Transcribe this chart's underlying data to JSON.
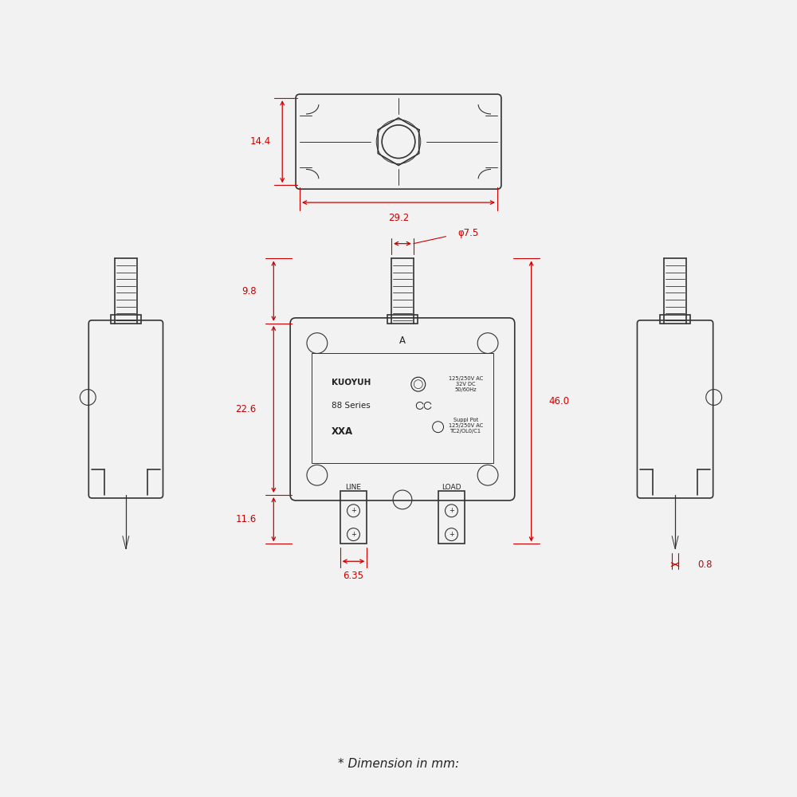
{
  "background_color": "#f2f2f2",
  "line_color": "#333333",
  "dim_color": "#cc0000",
  "text_color": "#222222",
  "title_text": "* Dimension in mm:",
  "label_A": "A",
  "label_KUOYUH": "KUOYUH",
  "label_88Series": "88 Series",
  "label_XXA": "XXA",
  "label_specs1": "125/250V AC\n32V DC\n50/60Hz",
  "label_SupplPort": "Suppl Pot\n125/250V AC\nTC2/OL0/C1",
  "label_LINE": "LINE",
  "label_LOAD": "LOAD",
  "dim_14_4": "14.4",
  "dim_29_2": "29.2",
  "dim_phi7_5": "φ7.5",
  "dim_9_8": "9.8",
  "dim_22_6": "22.6",
  "dim_46_0": "46.0",
  "dim_11_6": "11.6",
  "dim_6_35": "6.35",
  "dim_0_8": "0.8"
}
